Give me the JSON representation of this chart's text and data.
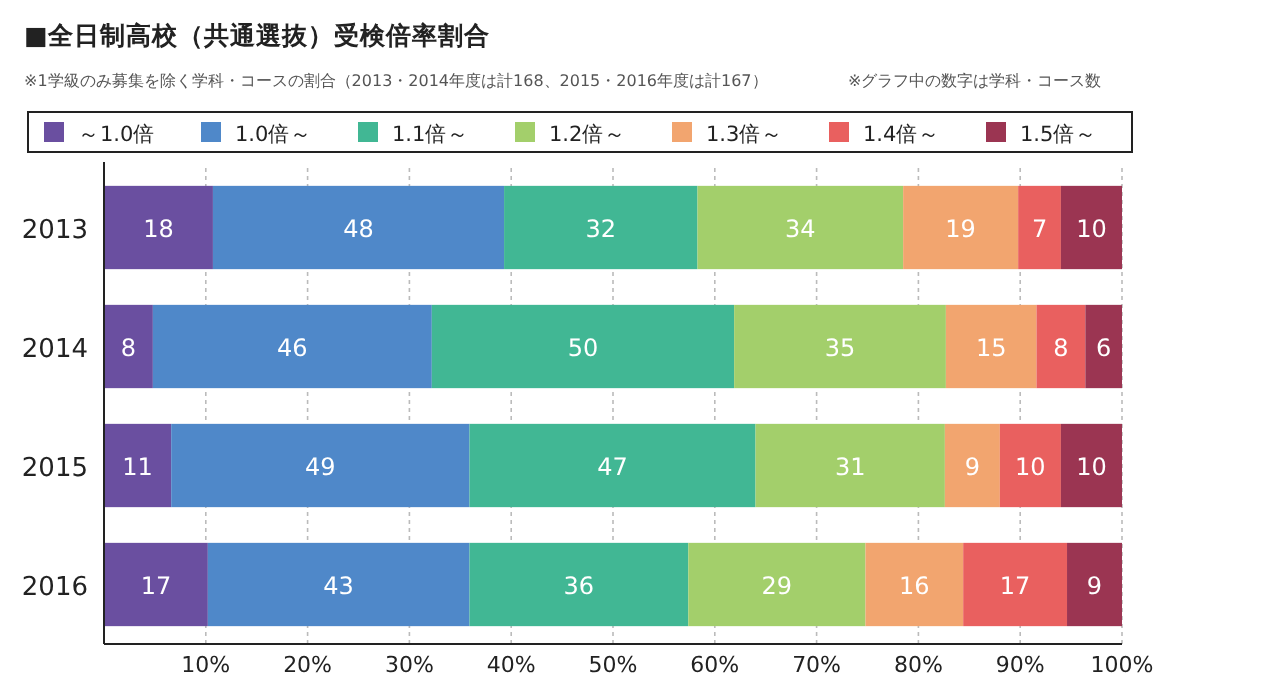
{
  "chart_data": {
    "type": "bar",
    "orientation": "horizontal",
    "stacked": true,
    "title": "■全日制高校（共通選抜）受検倍率割合",
    "annotations": [
      "※1学級のみ募集を除く学科・コースの割合（2013・2014年度は計168、2015・2016年度は計167）",
      "※グラフ中の数字は学科・コース数",
      "18",
      "48",
      "32",
      "34",
      "19",
      "7",
      "10",
      "8",
      "46",
      "50",
      "35",
      "15",
      "8",
      "6",
      "11",
      "49",
      "47",
      "31",
      "9",
      "10",
      "10",
      "17",
      "43",
      "36",
      "29",
      "16",
      "17",
      "9"
    ],
    "categories": [
      "2013",
      "2014",
      "2015",
      "2016"
    ],
    "series": [
      {
        "name": "～1.0倍",
        "color": "#6a4fa0",
        "values": [
          10.7,
          4.8,
          6.6,
          10.2
        ]
      },
      {
        "name": "1.0倍～",
        "color": "#4f88c9",
        "values": [
          28.6,
          27.4,
          29.3,
          25.7
        ]
      },
      {
        "name": "1.1倍～",
        "color": "#41b794",
        "values": [
          19.0,
          29.7,
          28.1,
          21.5
        ]
      },
      {
        "name": "1.2倍～",
        "color": "#a3cf6b",
        "values": [
          20.2,
          20.8,
          18.6,
          17.4
        ]
      },
      {
        "name": "1.3倍～",
        "color": "#f2a56f",
        "values": [
          11.3,
          8.9,
          5.4,
          9.6
        ]
      },
      {
        "name": "1.4倍～",
        "color": "#e9605f",
        "values": [
          4.2,
          4.8,
          6.0,
          10.2
        ]
      },
      {
        "name": "1.5倍～",
        "color": "#9b3552",
        "values": [
          6.0,
          3.6,
          6.0,
          5.4
        ]
      }
    ],
    "xlim": [
      0,
      100
    ],
    "xticks": [
      {
        "value": 10,
        "label": "10%"
      },
      {
        "value": 20,
        "label": "20%"
      },
      {
        "value": 30,
        "label": "30%"
      },
      {
        "value": 40,
        "label": "40%"
      },
      {
        "value": 50,
        "label": "50%"
      },
      {
        "value": 60,
        "label": "60%"
      },
      {
        "value": 70,
        "label": "70%"
      },
      {
        "value": 80,
        "label": "80%"
      },
      {
        "value": 90,
        "label": "90%"
      },
      {
        "value": 100,
        "label": "100%"
      }
    ],
    "grid": "x",
    "legend": "top"
  }
}
